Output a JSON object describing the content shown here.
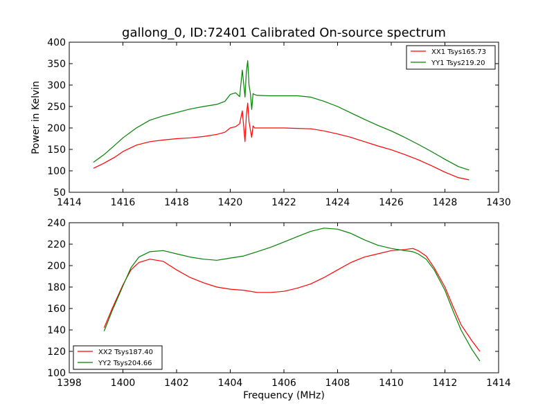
{
  "chart_data": [
    {
      "type": "line",
      "title": "gallong_0, ID:72401 Calibrated On-source spectrum",
      "xlabel": "",
      "ylabel": "Power in Kelvin",
      "xlim": [
        1414,
        1430
      ],
      "ylim": [
        50,
        400
      ],
      "xticks": [
        1414,
        1416,
        1418,
        1420,
        1422,
        1424,
        1426,
        1428,
        1430
      ],
      "yticks": [
        50,
        100,
        150,
        200,
        250,
        300,
        350,
        400
      ],
      "grid": false,
      "legend_position": "top-right",
      "series": [
        {
          "name": "XX1 Tsys165.73",
          "color": "#ff0000",
          "x": [
            1414.9,
            1415.3,
            1415.7,
            1416.0,
            1416.5,
            1417.0,
            1417.5,
            1418.0,
            1418.5,
            1419.0,
            1419.5,
            1419.8,
            1420.0,
            1420.2,
            1420.35,
            1420.45,
            1420.55,
            1420.6,
            1420.65,
            1420.7,
            1420.75,
            1420.8,
            1420.85,
            1420.9,
            1421.0,
            1421.5,
            1422.0,
            1422.5,
            1423.0,
            1423.5,
            1424.0,
            1424.5,
            1425.0,
            1425.5,
            1426.0,
            1426.5,
            1427.0,
            1427.5,
            1428.0,
            1428.5,
            1428.9
          ],
          "y": [
            106,
            118,
            132,
            145,
            160,
            168,
            172,
            175,
            177,
            180,
            185,
            190,
            200,
            203,
            210,
            240,
            168,
            230,
            258,
            215,
            195,
            178,
            205,
            200,
            200,
            200,
            200,
            199,
            198,
            193,
            186,
            178,
            168,
            158,
            149,
            138,
            126,
            112,
            97,
            84,
            79
          ]
        },
        {
          "name": "YY1 Tsys219.20",
          "color": "#008000",
          "x": [
            1414.9,
            1415.3,
            1415.7,
            1416.0,
            1416.5,
            1417.0,
            1417.5,
            1418.0,
            1418.5,
            1419.0,
            1419.5,
            1419.8,
            1420.0,
            1420.2,
            1420.35,
            1420.45,
            1420.55,
            1420.6,
            1420.65,
            1420.7,
            1420.75,
            1420.8,
            1420.85,
            1420.9,
            1421.0,
            1421.5,
            1422.0,
            1422.5,
            1423.0,
            1423.5,
            1424.0,
            1424.5,
            1425.0,
            1425.5,
            1426.0,
            1426.5,
            1427.0,
            1427.5,
            1428.0,
            1428.5,
            1428.9
          ],
          "y": [
            120,
            138,
            160,
            177,
            200,
            218,
            228,
            236,
            244,
            250,
            255,
            262,
            278,
            282,
            273,
            335,
            272,
            330,
            357,
            300,
            280,
            243,
            280,
            278,
            276,
            275,
            275,
            275,
            272,
            262,
            250,
            235,
            220,
            206,
            193,
            178,
            162,
            145,
            127,
            110,
            102
          ]
        }
      ]
    },
    {
      "type": "line",
      "title": "",
      "xlabel": "Frequency (MHz)",
      "ylabel": "",
      "xlim": [
        1398,
        1414
      ],
      "ylim": [
        100,
        240
      ],
      "xticks": [
        1398,
        1400,
        1402,
        1404,
        1406,
        1408,
        1410,
        1412,
        1414
      ],
      "yticks": [
        100,
        120,
        140,
        160,
        180,
        200,
        220,
        240
      ],
      "grid": false,
      "legend_position": "bottom-left",
      "series": [
        {
          "name": "XX2 Tsys187.40",
          "color": "#ff0000",
          "x": [
            1399.3,
            1399.6,
            1400.0,
            1400.3,
            1400.6,
            1401.0,
            1401.5,
            1402.0,
            1402.5,
            1403.0,
            1403.5,
            1404.0,
            1404.5,
            1405.0,
            1405.5,
            1406.0,
            1406.5,
            1407.0,
            1407.5,
            1408.0,
            1408.5,
            1409.0,
            1409.5,
            1410.0,
            1410.5,
            1410.8,
            1411.0,
            1411.3,
            1411.6,
            1412.0,
            1412.3,
            1412.6,
            1413.0,
            1413.3
          ],
          "y": [
            142,
            160,
            182,
            196,
            203,
            206,
            204,
            196,
            189,
            184,
            180,
            178,
            177,
            175,
            175,
            176,
            179,
            183,
            189,
            196,
            203,
            208,
            211,
            214,
            215,
            216,
            214,
            209,
            198,
            180,
            162,
            145,
            130,
            120
          ]
        },
        {
          "name": "YY2 Tsys204.66",
          "color": "#008000",
          "x": [
            1399.3,
            1399.6,
            1400.0,
            1400.3,
            1400.6,
            1401.0,
            1401.5,
            1402.0,
            1402.5,
            1403.0,
            1403.5,
            1404.0,
            1404.5,
            1405.0,
            1405.5,
            1406.0,
            1406.5,
            1407.0,
            1407.5,
            1408.0,
            1408.5,
            1409.0,
            1409.5,
            1410.0,
            1410.5,
            1410.8,
            1411.0,
            1411.3,
            1411.6,
            1412.0,
            1412.3,
            1412.6,
            1413.0,
            1413.3
          ],
          "y": [
            139,
            158,
            181,
            198,
            208,
            213,
            214,
            211,
            208,
            206,
            205,
            207,
            209,
            213,
            217,
            222,
            227,
            232,
            235,
            234,
            230,
            224,
            219,
            216,
            214,
            213,
            211,
            206,
            196,
            177,
            158,
            140,
            122,
            111
          ]
        }
      ]
    }
  ]
}
